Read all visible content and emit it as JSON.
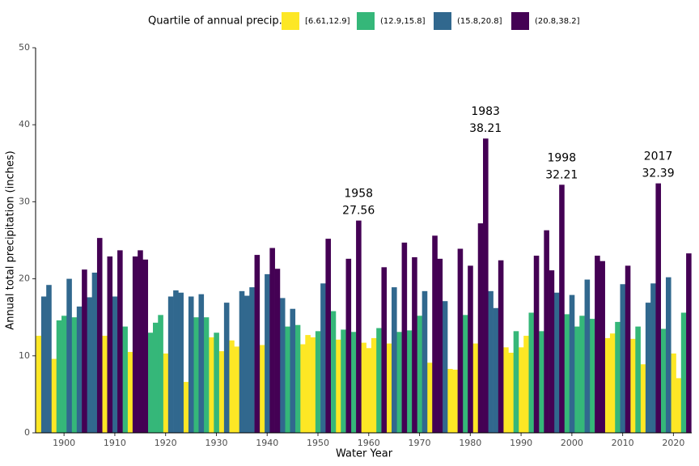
{
  "chart_data": {
    "type": "bar",
    "legend_title": "Quartile of annual precip.",
    "x_label": "Water Year",
    "y_label": "Annual total precipitation (inches)",
    "xlim": [
      1894.4,
      2023.6
    ],
    "xticks": [
      1900,
      1910,
      1920,
      1930,
      1940,
      1950,
      1960,
      1970,
      1980,
      1990,
      2000,
      2010,
      2020
    ],
    "ylim": [
      0,
      50
    ],
    "yticks": [
      0,
      10,
      20,
      30,
      40,
      50
    ],
    "grid": false,
    "legend": "top",
    "series": [
      {
        "name": "[6.61,12.9]",
        "color": "#fde725",
        "x": [
          1895,
          1898,
          1908,
          1913,
          1920,
          1924,
          1929,
          1931,
          1933,
          1934,
          1939,
          1947,
          1948,
          1949,
          1954,
          1959,
          1960,
          1961,
          1964,
          1972,
          1976,
          1977,
          1981,
          1987,
          1988,
          1990,
          1991,
          2007,
          2008,
          2012,
          2014,
          2020,
          2021
        ],
        "values": [
          12.6,
          9.6,
          12.6,
          10.5,
          10.3,
          6.61,
          12.4,
          10.6,
          12.0,
          11.2,
          11.4,
          11.5,
          12.7,
          12.4,
          12.1,
          11.7,
          11.0,
          12.3,
          11.6,
          9.1,
          8.3,
          8.2,
          11.6,
          11.1,
          10.4,
          11.1,
          12.6,
          12.3,
          12.9,
          12.2,
          8.9,
          10.3,
          7.1
        ]
      },
      {
        "name": "(12.9,15.8]",
        "color": "#35b779",
        "x": [
          1899,
          1900,
          1902,
          1912,
          1917,
          1918,
          1919,
          1926,
          1928,
          1930,
          1944,
          1946,
          1950,
          1953,
          1955,
          1957,
          1962,
          1966,
          1968,
          1970,
          1979,
          1989,
          1992,
          1994,
          1999,
          2001,
          2002,
          2004,
          2009,
          2013,
          2018,
          2022
        ],
        "values": [
          14.6,
          15.2,
          15.0,
          13.8,
          13.0,
          14.3,
          15.3,
          15.0,
          15.0,
          13.0,
          13.8,
          14.0,
          13.2,
          15.8,
          13.4,
          13.1,
          13.6,
          13.1,
          13.3,
          15.2,
          15.3,
          13.2,
          15.6,
          13.2,
          15.4,
          13.8,
          15.2,
          14.8,
          14.4,
          13.8,
          13.5,
          15.6
        ]
      },
      {
        "name": "(15.8,20.8]",
        "color": "#31688e",
        "x": [
          1896,
          1897,
          1901,
          1903,
          1905,
          1906,
          1910,
          1921,
          1922,
          1923,
          1925,
          1927,
          1932,
          1935,
          1936,
          1937,
          1940,
          1943,
          1945,
          1951,
          1965,
          1971,
          1975,
          1984,
          1985,
          1997,
          2000,
          2003,
          2010,
          2015,
          2016,
          2019
        ],
        "values": [
          17.7,
          19.2,
          20.0,
          16.4,
          17.6,
          20.8,
          17.7,
          17.7,
          18.5,
          18.2,
          17.7,
          18.0,
          16.9,
          18.4,
          17.8,
          18.9,
          20.6,
          17.5,
          16.1,
          19.4,
          18.9,
          18.4,
          17.1,
          18.4,
          16.2,
          18.2,
          17.9,
          19.9,
          19.3,
          16.9,
          19.4,
          20.2
        ]
      },
      {
        "name": "(20.8,38.2]",
        "color": "#440154",
        "x": [
          1904,
          1907,
          1909,
          1911,
          1914,
          1915,
          1916,
          1938,
          1941,
          1942,
          1952,
          1956,
          1958,
          1963,
          1967,
          1969,
          1973,
          1974,
          1978,
          1980,
          1982,
          1983,
          1986,
          1993,
          1995,
          1996,
          1998,
          2005,
          2006,
          2011,
          2017,
          2023
        ],
        "values": [
          21.2,
          25.3,
          22.9,
          23.7,
          22.9,
          23.7,
          22.5,
          23.1,
          24.0,
          21.3,
          25.2,
          22.6,
          27.56,
          21.5,
          24.7,
          22.8,
          25.6,
          22.6,
          23.9,
          21.7,
          27.2,
          38.21,
          22.4,
          23.0,
          26.3,
          21.1,
          32.21,
          23.0,
          22.3,
          21.7,
          32.39,
          23.3
        ]
      }
    ],
    "annotations": [
      {
        "x": 1958,
        "y": 27.56
      },
      {
        "x": 1983,
        "y": 38.21
      },
      {
        "x": 1998,
        "y": 32.21
      },
      {
        "x": 2017,
        "y": 32.39
      }
    ]
  }
}
